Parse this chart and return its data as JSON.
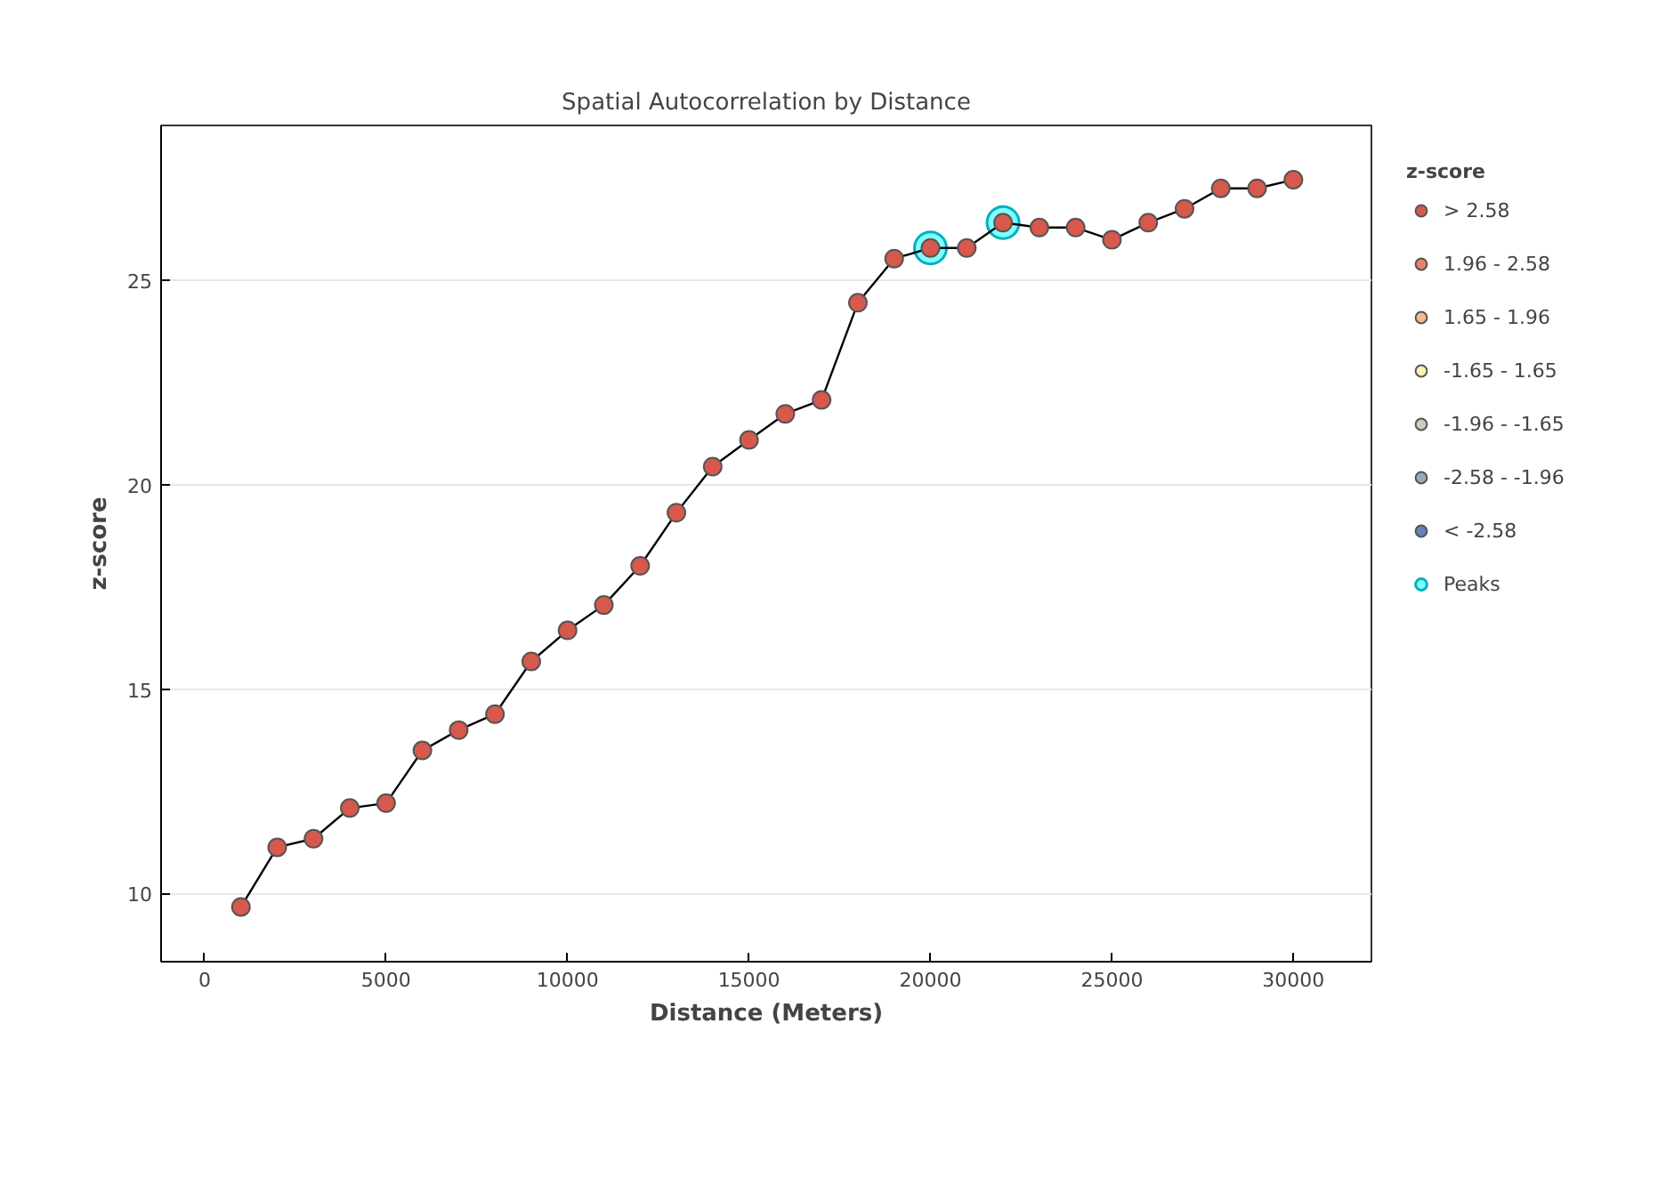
{
  "chart_data": {
    "type": "line",
    "title": "Spatial Autocorrelation by Distance",
    "xlabel": "Distance (Meters)",
    "ylabel": "z-score",
    "legend_title": "z-score",
    "x": [
      1000,
      2000,
      3000,
      4000,
      5000,
      6000,
      7000,
      8000,
      9000,
      10000,
      11000,
      12000,
      13000,
      14000,
      15000,
      16000,
      17000,
      18000,
      19000,
      20000,
      21000,
      22000,
      23000,
      24000,
      25000,
      26000,
      27000,
      28000,
      29000,
      30000
    ],
    "series": [
      {
        "type": "line",
        "color": "#000000",
        "marker": "none",
        "values": [
          9.67,
          11.13,
          11.34,
          12.09,
          12.21,
          13.5,
          14.0,
          14.39,
          15.68,
          16.44,
          17.06,
          18.02,
          19.32,
          20.45,
          21.1,
          21.74,
          22.08,
          24.46,
          25.54,
          25.8,
          25.8,
          26.42,
          26.3,
          26.3,
          26.0,
          26.42,
          26.76,
          27.26,
          27.26,
          27.47
        ]
      },
      {
        "type": "scatter",
        "name": "> 2.58",
        "color": "#d7584c",
        "values": [
          9.67,
          11.13,
          11.34,
          12.09,
          12.21,
          13.5,
          14.0,
          14.39,
          15.68,
          16.44,
          17.06,
          18.02,
          19.32,
          20.45,
          21.1,
          21.74,
          22.08,
          24.46,
          25.54,
          25.8,
          25.8,
          26.42,
          26.3,
          26.3,
          26.0,
          26.42,
          26.76,
          27.26,
          27.26,
          27.47
        ]
      },
      {
        "type": "scatter",
        "name": "1.96 - 2.58",
        "color": "#e8836a",
        "values": [
          null,
          null,
          null,
          null,
          null,
          null,
          null,
          null,
          null,
          null,
          null,
          null,
          null,
          null,
          null,
          null,
          null,
          null,
          null,
          null,
          null,
          null,
          null,
          null,
          null,
          null,
          null,
          null,
          null,
          null
        ]
      },
      {
        "type": "scatter",
        "name": "1.65 - 1.96",
        "color": "#f5b88f",
        "values": [
          null,
          null,
          null,
          null,
          null,
          null,
          null,
          null,
          null,
          null,
          null,
          null,
          null,
          null,
          null,
          null,
          null,
          null,
          null,
          null,
          null,
          null,
          null,
          null,
          null,
          null,
          null,
          null,
          null,
          null
        ]
      },
      {
        "type": "scatter",
        "name": "-1.65 - 1.65",
        "color": "#f7f3b5",
        "values": [
          null,
          null,
          null,
          null,
          null,
          null,
          null,
          null,
          null,
          null,
          null,
          null,
          null,
          null,
          null,
          null,
          null,
          null,
          null,
          null,
          null,
          null,
          null,
          null,
          null,
          null,
          null,
          null,
          null,
          null
        ]
      },
      {
        "type": "scatter",
        "name": "-1.96 - -1.65",
        "color": "#c8cdc0",
        "values": [
          null,
          null,
          null,
          null,
          null,
          null,
          null,
          null,
          null,
          null,
          null,
          null,
          null,
          null,
          null,
          null,
          null,
          null,
          null,
          null,
          null,
          null,
          null,
          null,
          null,
          null,
          null,
          null,
          null,
          null
        ]
      },
      {
        "type": "scatter",
        "name": "-2.58 - -1.96",
        "color": "#99a8bd",
        "values": [
          null,
          null,
          null,
          null,
          null,
          null,
          null,
          null,
          null,
          null,
          null,
          null,
          null,
          null,
          null,
          null,
          null,
          null,
          null,
          null,
          null,
          null,
          null,
          null,
          null,
          null,
          null,
          null,
          null,
          null
        ]
      },
      {
        "type": "scatter",
        "name": "< -2.58",
        "color": "#6482b5",
        "values": [
          null,
          null,
          null,
          null,
          null,
          null,
          null,
          null,
          null,
          null,
          null,
          null,
          null,
          null,
          null,
          null,
          null,
          null,
          null,
          null,
          null,
          null,
          null,
          null,
          null,
          null,
          null,
          null,
          null,
          null
        ]
      },
      {
        "type": "scatter",
        "name": "Peaks",
        "color": "#80ffff",
        "x": [
          20000,
          22000
        ],
        "values": [
          25.8,
          26.42
        ]
      }
    ],
    "xlim": [
      -1200,
      32150
    ],
    "ylim": [
      8.33,
      28.8
    ],
    "xticks": [
      0,
      5000,
      10000,
      15000,
      20000,
      25000,
      30000
    ],
    "yticks": [
      10,
      15,
      20,
      25
    ],
    "grid": "y",
    "legend": "right",
    "marker": "circle"
  }
}
